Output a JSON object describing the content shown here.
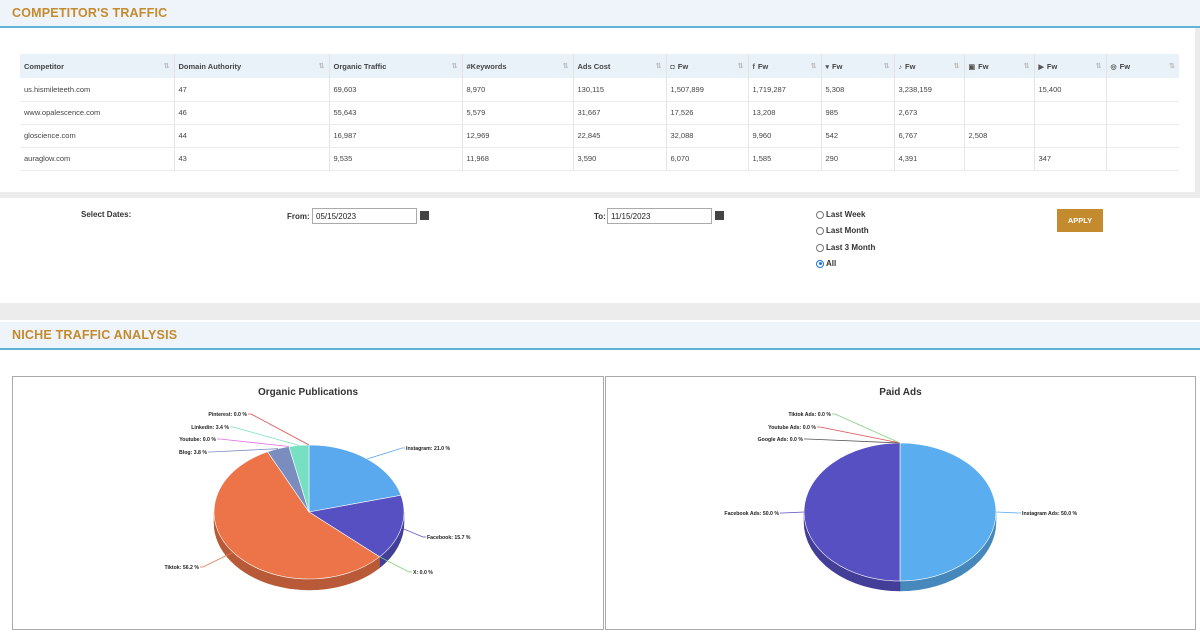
{
  "competitors_section": {
    "title": "COMPETITOR'S TRAFFIC",
    "columns": [
      {
        "label": "Competitor",
        "icon": ""
      },
      {
        "label": "Domain Authority",
        "icon": ""
      },
      {
        "label": "Organic Traffic",
        "icon": ""
      },
      {
        "label": "#Keywords",
        "icon": ""
      },
      {
        "label": "Ads Cost",
        "icon": ""
      },
      {
        "label": "Fw",
        "icon": "instagram-icon"
      },
      {
        "label": "Fw",
        "icon": "facebook-icon"
      },
      {
        "label": "Fw",
        "icon": "twitter-icon"
      },
      {
        "label": "Fw",
        "icon": "tiktok-icon"
      },
      {
        "label": "Fw",
        "icon": "linkedin-icon"
      },
      {
        "label": "Fw",
        "icon": "youtube-icon"
      },
      {
        "label": "Fw",
        "icon": "pinterest-icon"
      }
    ],
    "rows": [
      [
        "us.hismileteeth.com",
        "47",
        "69,603",
        "8,970",
        "130,115",
        "1,507,899",
        "1,719,287",
        "5,308",
        "3,238,159",
        "",
        "15,400",
        ""
      ],
      [
        "www.opalescence.com",
        "46",
        "55,643",
        "5,579",
        "31,667",
        "17,526",
        "13,208",
        "985",
        "2,673",
        "",
        "",
        ""
      ],
      [
        "gloscience.com",
        "44",
        "16,987",
        "12,969",
        "22,845",
        "32,088",
        "9,960",
        "542",
        "6,767",
        "2,508",
        "",
        ""
      ],
      [
        "auraglow.com",
        "43",
        "9,535",
        "11,968",
        "3,590",
        "6,070",
        "1,585",
        "290",
        "4,391",
        "",
        "347",
        ""
      ]
    ]
  },
  "filters": {
    "select_dates_label": "Select Dates:",
    "from_label": "From:",
    "from_value": "05/15/2023",
    "to_label": "To:",
    "to_value": "11/15/2023",
    "ranges": [
      {
        "label": "Last Week",
        "checked": false
      },
      {
        "label": "Last Month",
        "checked": false
      },
      {
        "label": "Last 3 Month",
        "checked": false
      },
      {
        "label": "All",
        "checked": true
      }
    ],
    "apply_label": "APPLY"
  },
  "niche_section": {
    "title": "NICHE TRAFFIC ANALYSIS"
  },
  "chart_data": [
    {
      "type": "pie",
      "title": "Organic Publications",
      "slices": [
        {
          "name": "Instagram",
          "value": 21.0,
          "label": "Instagram: 21.0 %",
          "color": "#5aa8ee"
        },
        {
          "name": "Facebook",
          "value": 15.7,
          "label": "Facebook: 15.7 %",
          "color": "#5650c2"
        },
        {
          "name": "X",
          "value": 0.0,
          "label": "X: 0.0 %",
          "color": "#7bd07b"
        },
        {
          "name": "Tiktok",
          "value": 56.2,
          "label": "Tiktok: 56.2 %",
          "color": "#ec7448"
        },
        {
          "name": "Blog",
          "value": 3.8,
          "label": "Blog: 3.8 %",
          "color": "#7b8cbf"
        },
        {
          "name": "Youtube",
          "value": 0.0,
          "label": "Youtube: 0.0 %",
          "color": "#e06ee0"
        },
        {
          "name": "Linkedin",
          "value": 3.4,
          "label": "Linkedin: 3.4 %",
          "color": "#78e0c2"
        },
        {
          "name": "Pinterest",
          "value": 0.0,
          "label": "Pinterest: 0.0 %",
          "color": "#e04b4b"
        }
      ]
    },
    {
      "type": "pie",
      "title": "Paid Ads",
      "slices": [
        {
          "name": "Instagram Ads",
          "value": 50.0,
          "label": "Instagram Ads: 50.0 %",
          "color": "#5aaef0"
        },
        {
          "name": "Facebook Ads",
          "value": 50.0,
          "label": "Facebook Ads: 50.0 %",
          "color": "#5650c2"
        },
        {
          "name": "Google Ads",
          "value": 0.0,
          "label": "Google Ads: 0.0 %",
          "color": "#555555"
        },
        {
          "name": "Youtube Ads",
          "value": 0.0,
          "label": "Youtube Ads: 0.0 %",
          "color": "#e04b4b"
        },
        {
          "name": "Tiktok Ads",
          "value": 0.0,
          "label": "Tiktok Ads: 0.0 %",
          "color": "#7bd07b"
        }
      ]
    }
  ]
}
